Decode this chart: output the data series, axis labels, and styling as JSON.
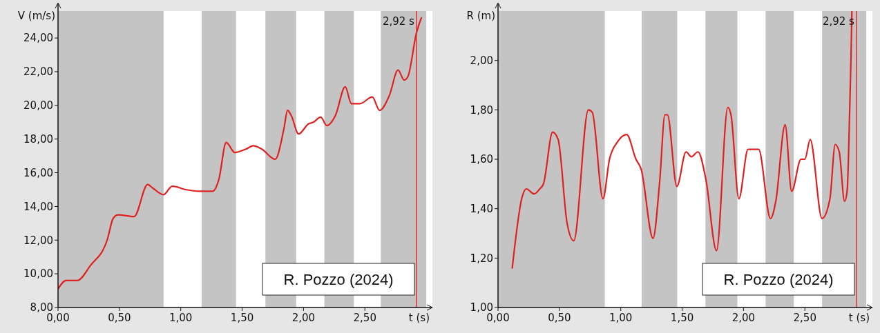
{
  "chart_data": [
    {
      "type": "line",
      "ylabel": "V (m/s)",
      "xlabel": "t (s)",
      "xlim": [
        0,
        3.05
      ],
      "ylim": [
        8,
        25.6
      ],
      "xticks": [
        {
          "value": 0,
          "label": "0,00"
        },
        {
          "value": 0.5,
          "label": "0,50"
        },
        {
          "value": 1,
          "label": "1,00"
        },
        {
          "value": 1.5,
          "label": "1,50"
        },
        {
          "value": 2,
          "label": "2,00"
        },
        {
          "value": 2.5,
          "label": "2,50"
        }
      ],
      "yticks": [
        {
          "value": 8,
          "label": "8,00"
        },
        {
          "value": 10,
          "label": "10,00"
        },
        {
          "value": 12,
          "label": "12,00"
        },
        {
          "value": 14,
          "label": "14,00"
        },
        {
          "value": 16,
          "label": "16,00"
        },
        {
          "value": 18,
          "label": "18,00"
        },
        {
          "value": 20,
          "label": "20,00"
        },
        {
          "value": 22,
          "label": "22,00"
        },
        {
          "value": 24,
          "label": "24,00"
        }
      ],
      "series": [
        {
          "color": "#e02020",
          "x": [
            0,
            0.066,
            0.1,
            0.155,
            0.265,
            0.4,
            0.45,
            0.49,
            0.62,
            0.73,
            0.77,
            0.86,
            0.93,
            1.04,
            1.15,
            1.26,
            1.31,
            1.37,
            1.44,
            1.53,
            1.59,
            1.66,
            1.77,
            1.84,
            1.87,
            1.9,
            1.96,
            2.04,
            2.08,
            2.14,
            2.19,
            2.26,
            2.34,
            2.39,
            2.46,
            2.56,
            2.62,
            2.7,
            2.77,
            2.82,
            2.85,
            2.92,
            2.96
          ],
          "values": [
            9.1,
            9.6,
            9.6,
            9.6,
            10.5,
            12.0,
            13.3,
            13.5,
            13.4,
            15.3,
            15.1,
            14.7,
            15.2,
            15.0,
            14.9,
            14.9,
            15.6,
            17.8,
            17.2,
            17.4,
            17.6,
            17.4,
            16.8,
            18.6,
            19.7,
            19.4,
            18.3,
            18.9,
            19.0,
            19.3,
            18.8,
            19.4,
            21.1,
            20.1,
            20.1,
            20.5,
            19.7,
            20.6,
            22.1,
            21.5,
            21.7,
            24.3,
            25.2
          ]
        }
      ],
      "bands": [
        {
          "axis": "x",
          "from": 0,
          "to": 0.86,
          "color": "#c4c4c4"
        },
        {
          "axis": "x",
          "from": 1.17,
          "to": 1.45,
          "color": "#c4c4c4"
        },
        {
          "axis": "x",
          "from": 1.69,
          "to": 1.94,
          "color": "#c4c4c4"
        },
        {
          "axis": "x",
          "from": 2.17,
          "to": 2.41,
          "color": "#c4c4c4"
        },
        {
          "axis": "x",
          "from": 2.63,
          "to": 3.0,
          "color": "#c4c4c4"
        }
      ],
      "ref_lines": [
        {
          "axis": "x",
          "value": 2.92,
          "label": "2,92 s",
          "color": "#e03030"
        }
      ],
      "annotations": [
        "R. Pozzo (2024)"
      ],
      "grid": false
    },
    {
      "type": "line",
      "ylabel": "R  (m)",
      "xlabel": "t (s)",
      "xlim": [
        0,
        3.05
      ],
      "ylim": [
        1.0,
        2.2
      ],
      "xticks": [
        {
          "value": 0,
          "label": "0,00"
        },
        {
          "value": 0.5,
          "label": "0,50"
        },
        {
          "value": 1,
          "label": "1,00"
        },
        {
          "value": 1.5,
          "label": "1,50"
        },
        {
          "value": 2,
          "label": "2,00"
        },
        {
          "value": 2.5,
          "label": "2,50"
        }
      ],
      "yticks": [
        {
          "value": 1,
          "label": "1,00"
        },
        {
          "value": 1.2,
          "label": "1,20"
        },
        {
          "value": 1.4,
          "label": "1,40"
        },
        {
          "value": 1.6,
          "label": "1,60"
        },
        {
          "value": 1.8,
          "label": "1,80"
        },
        {
          "value": 2,
          "label": "2,00"
        }
      ],
      "series": [
        {
          "color": "#e02020",
          "x": [
            0.116,
            0.198,
            0.23,
            0.295,
            0.34,
            0.37,
            0.445,
            0.49,
            0.563,
            0.617,
            0.736,
            0.768,
            0.855,
            0.908,
            0.973,
            1.048,
            1.124,
            1.166,
            1.263,
            1.317,
            1.36,
            1.38,
            1.457,
            1.532,
            1.575,
            1.629,
            1.693,
            1.78,
            1.872,
            1.898,
            1.962,
            2.037,
            2.07,
            2.123,
            2.22,
            2.263,
            2.339,
            2.392,
            2.468,
            2.5,
            2.543,
            2.64,
            2.704,
            2.747,
            2.78,
            2.823,
            2.844,
            2.866,
            2.876,
            2.883
          ],
          "values": [
            1.16,
            1.45,
            1.48,
            1.46,
            1.48,
            1.5,
            1.71,
            1.68,
            1.34,
            1.27,
            1.8,
            1.79,
            1.44,
            1.6,
            1.67,
            1.7,
            1.6,
            1.56,
            1.28,
            1.51,
            1.78,
            1.78,
            1.49,
            1.63,
            1.61,
            1.63,
            1.52,
            1.23,
            1.81,
            1.78,
            1.44,
            1.64,
            1.64,
            1.64,
            1.36,
            1.43,
            1.74,
            1.47,
            1.6,
            1.6,
            1.68,
            1.36,
            1.44,
            1.66,
            1.63,
            1.43,
            1.47,
            1.82,
            2.02,
            2.2
          ]
        }
      ],
      "bands": [
        {
          "axis": "x",
          "from": 0,
          "to": 0.87,
          "color": "#c4c4c4"
        },
        {
          "axis": "x",
          "from": 1.17,
          "to": 1.46,
          "color": "#c4c4c4"
        },
        {
          "axis": "x",
          "from": 1.69,
          "to": 1.95,
          "color": "#c4c4c4"
        },
        {
          "axis": "x",
          "from": 2.18,
          "to": 2.41,
          "color": "#c4c4c4"
        },
        {
          "axis": "x",
          "from": 2.64,
          "to": 3.0,
          "color": "#c4c4c4"
        }
      ],
      "ref_lines": [
        {
          "axis": "x",
          "value": 2.92,
          "label": "2,92 s",
          "color": "#e03030"
        }
      ],
      "annotations": [
        "R. Pozzo (2024)"
      ],
      "grid": false
    }
  ]
}
